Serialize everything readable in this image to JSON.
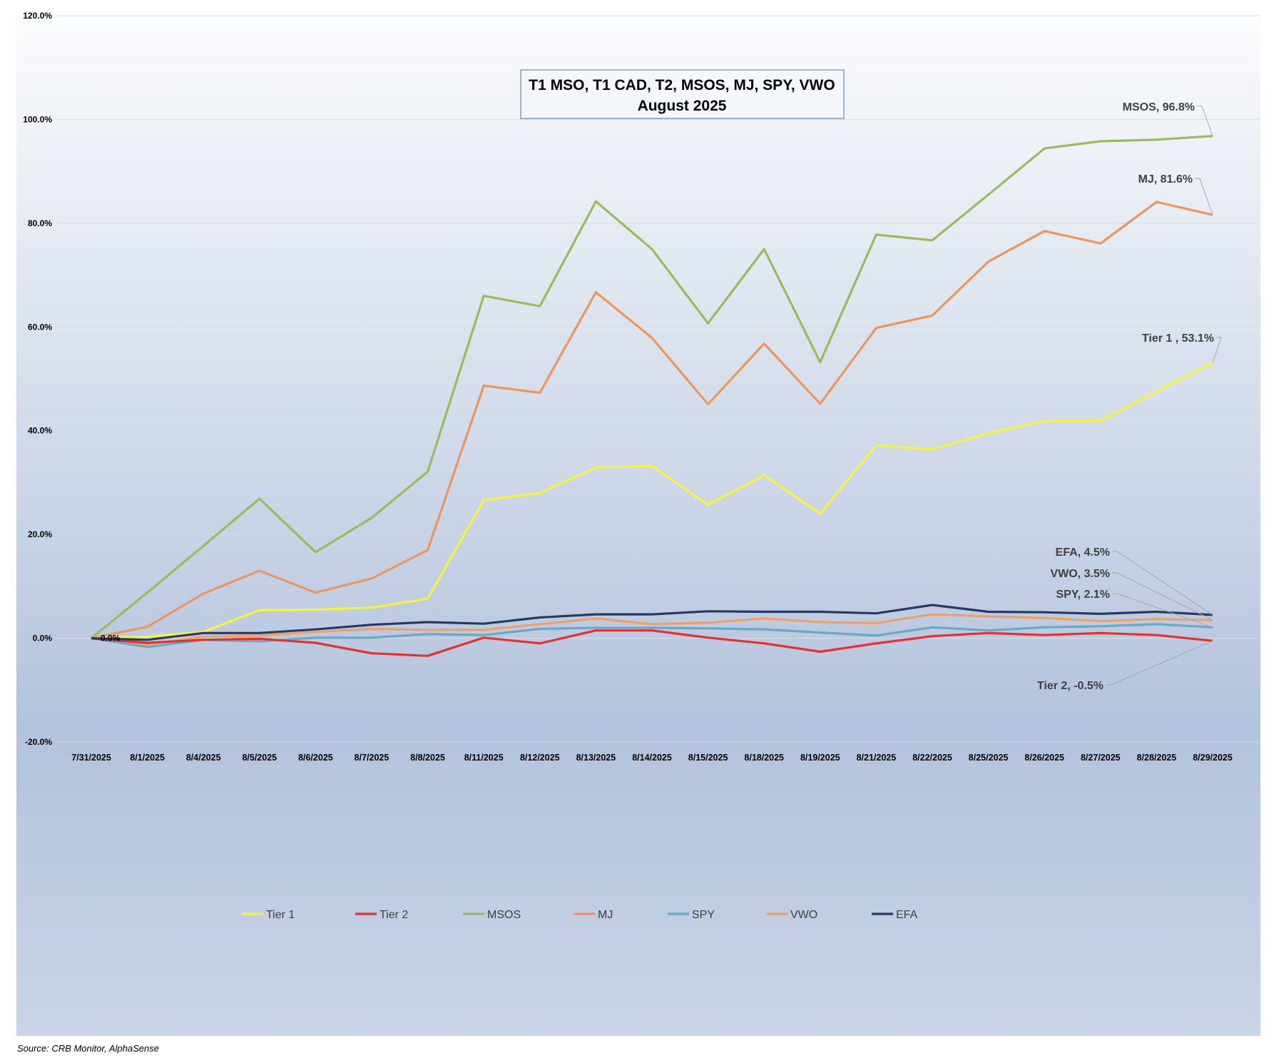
{
  "chart_data": {
    "type": "line",
    "title": [
      "T1 MSO, T1 CAD, T2, MSOS, MJ, SPY, VWO",
      "August  2025"
    ],
    "xlabel": "",
    "ylabel": "",
    "ylim": [
      -20,
      120
    ],
    "yticks": [
      "-20.0%",
      "0.0%",
      "20.0%",
      "40.0%",
      "60.0%",
      "80.0%",
      "100.0%",
      "120.0%"
    ],
    "grid": true,
    "legend_position": "bottom",
    "categories": [
      "7/31/2025",
      "8/1/2025",
      "8/4/2025",
      "8/5/2025",
      "8/6/2025",
      "8/7/2025",
      "8/8/2025",
      "8/11/2025",
      "8/12/2025",
      "8/13/2025",
      "8/14/2025",
      "8/15/2025",
      "8/18/2025",
      "8/19/2025",
      "8/21/2025",
      "8/22/2025",
      "8/25/2025",
      "8/26/2025",
      "8/27/2025",
      "8/28/2025",
      "8/29/2025"
    ],
    "series": [
      {
        "name": "Tier 1",
        "color": "#F5F53A",
        "values": [
          0,
          0.3,
          1.2,
          5.4,
          5.5,
          5.9,
          7.6,
          26.6,
          28.0,
          32.9,
          33.2,
          25.7,
          31.4,
          24.0,
          37.2,
          36.4,
          39.5,
          41.9,
          41.9,
          47.6,
          53.1
        ],
        "end_label": "Tier 1 , 53.1%"
      },
      {
        "name": "Tier 2",
        "color": "#E8302A",
        "values": [
          0,
          -0.9,
          -0.3,
          -0.1,
          -0.9,
          -2.9,
          -3.4,
          0.1,
          -1.0,
          1.5,
          1.5,
          0.1,
          -1.0,
          -2.6,
          -1.0,
          0.4,
          1.0,
          0.6,
          1.0,
          0.6,
          -0.5
        ],
        "end_label": "Tier 2, -0.5%"
      },
      {
        "name": "MSOS",
        "color": "#9BBB59",
        "values": [
          0,
          8.8,
          17.8,
          26.9,
          16.6,
          23.2,
          32.1,
          66.0,
          64.0,
          84.2,
          75.0,
          60.7,
          75.0,
          53.2,
          77.8,
          76.7,
          85.5,
          94.4,
          95.8,
          96.1,
          96.8
        ],
        "end_label": "MSOS, 96.8%"
      },
      {
        "name": "MJ",
        "color": "#F0955A",
        "values": [
          0,
          2.2,
          8.6,
          13.0,
          8.8,
          11.5,
          17.0,
          48.7,
          47.3,
          66.7,
          57.9,
          45.1,
          56.8,
          45.2,
          59.8,
          62.2,
          72.6,
          78.5,
          76.1,
          84.1,
          81.6
        ],
        "end_label": "MJ, 81.6%"
      },
      {
        "name": "SPY",
        "color": "#6AA9C6",
        "values": [
          0,
          -1.7,
          -0.3,
          -0.6,
          0.1,
          0.1,
          0.8,
          0.6,
          1.8,
          2.0,
          2.0,
          1.9,
          1.7,
          1.1,
          0.5,
          2.1,
          1.5,
          2.1,
          2.3,
          2.7,
          2.1
        ],
        "end_label": "SPY, 2.1%"
      },
      {
        "name": "VWO",
        "color": "#F0A060",
        "values": [
          0,
          -1.2,
          0.3,
          0.5,
          1.2,
          1.8,
          1.6,
          1.6,
          2.7,
          3.8,
          2.7,
          3.0,
          3.8,
          3.1,
          2.9,
          4.6,
          4.2,
          3.9,
          3.3,
          3.7,
          3.5
        ],
        "end_label": "VWO, 3.5%"
      },
      {
        "name": "EFA",
        "color": "#243B63",
        "values": [
          0,
          -0.3,
          1.0,
          1.0,
          1.7,
          2.6,
          3.1,
          2.8,
          4.0,
          4.6,
          4.6,
          5.2,
          5.1,
          5.1,
          4.8,
          6.4,
          5.1,
          5.0,
          4.7,
          5.1,
          4.5
        ],
        "end_label": "EFA, 4.5%"
      }
    ],
    "start_label": "0.0%",
    "source": "Source: CRB Monitor, AlphaSense"
  }
}
